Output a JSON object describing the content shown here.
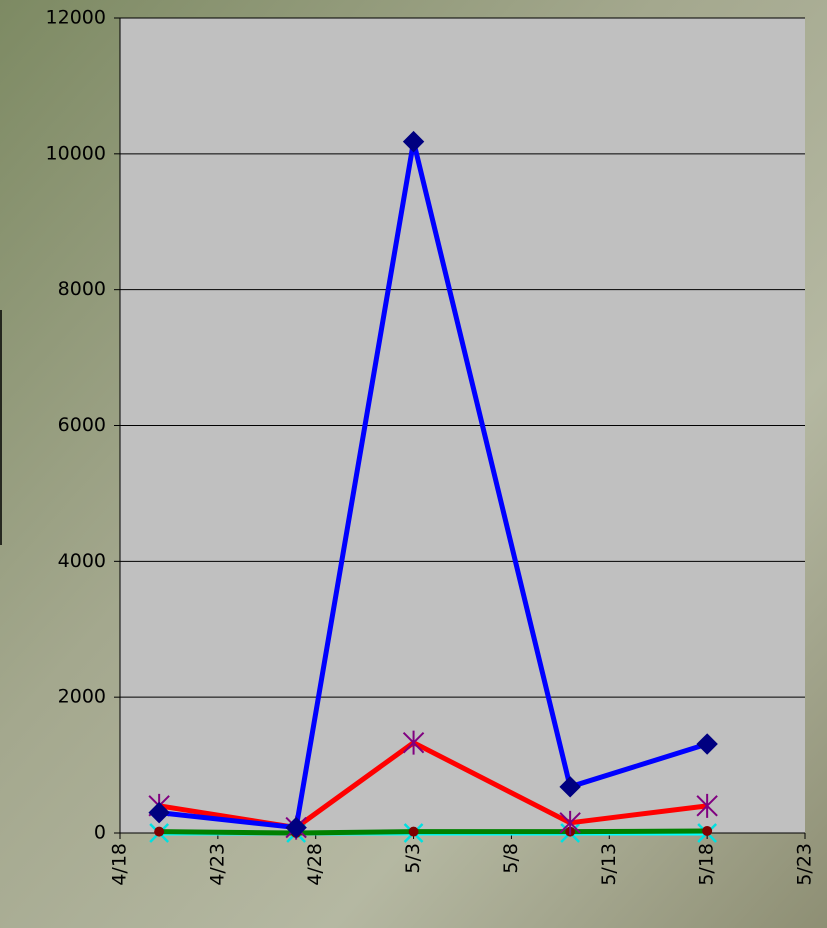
{
  "chart_data": {
    "type": "line",
    "x": [
      "4/20",
      "4/27",
      "5/3",
      "5/11",
      "5/18"
    ],
    "series": [
      {
        "color": "#0000ff",
        "marker_color": "#000080",
        "marker": "diamond",
        "values": [
          300,
          80,
          10180,
          680,
          1310
        ]
      },
      {
        "color": "#ff0000",
        "marker_color": "#800080",
        "marker": "asterisk",
        "values": [
          400,
          80,
          1330,
          150,
          400
        ]
      },
      {
        "color": "#008000",
        "marker_color": "#800000",
        "marker": "circle",
        "values": [
          20,
          0,
          20,
          20,
          30
        ]
      },
      {
        "color": "#00ffff",
        "marker_color": "#00e0e0",
        "marker": "x",
        "values": [
          0,
          0,
          0,
          0,
          0
        ]
      }
    ],
    "xlim": [
      "4/18",
      "5/23"
    ],
    "xticks": [
      "4/18",
      "4/23",
      "4/28",
      "5/3",
      "5/8",
      "5/13",
      "5/18",
      "5/23"
    ],
    "ylim": [
      0,
      12000
    ],
    "yticks": [
      0,
      2000,
      4000,
      6000,
      8000,
      10000,
      12000
    ],
    "grid": true
  }
}
